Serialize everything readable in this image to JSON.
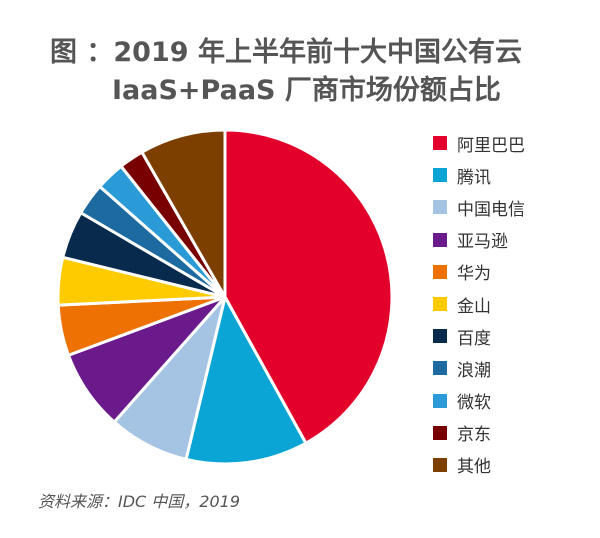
{
  "chart_data": {
    "type": "pie",
    "title": "图   ：2019 年上半年前十大中国公有云",
    "subtitle": "IaaS+PaaS 厂商市场份额占比",
    "legend_position": "right",
    "series": [
      {
        "name": "阿里巴巴",
        "value": 42.0,
        "color": "#e3002b"
      },
      {
        "name": "腾讯",
        "value": 11.8,
        "color": "#0aa4d5"
      },
      {
        "name": "中国电信",
        "value": 7.8,
        "color": "#a5c3e3"
      },
      {
        "name": "亚马逊",
        "value": 7.8,
        "color": "#6b1a8c"
      },
      {
        "name": "华为",
        "value": 4.9,
        "color": "#ee7203"
      },
      {
        "name": "金山",
        "value": 4.6,
        "color": "#fecb00"
      },
      {
        "name": "百度",
        "value": 4.6,
        "color": "#082a4c"
      },
      {
        "name": "浪潮",
        "value": 3.1,
        "color": "#1d6aa0"
      },
      {
        "name": "微软",
        "value": 2.8,
        "color": "#2b9bd7"
      },
      {
        "name": "京东",
        "value": 2.4,
        "color": "#790000"
      },
      {
        "name": "其他",
        "value": 8.3,
        "color": "#7c3f00"
      }
    ],
    "source": "资料来源：IDC 中国，2019"
  }
}
